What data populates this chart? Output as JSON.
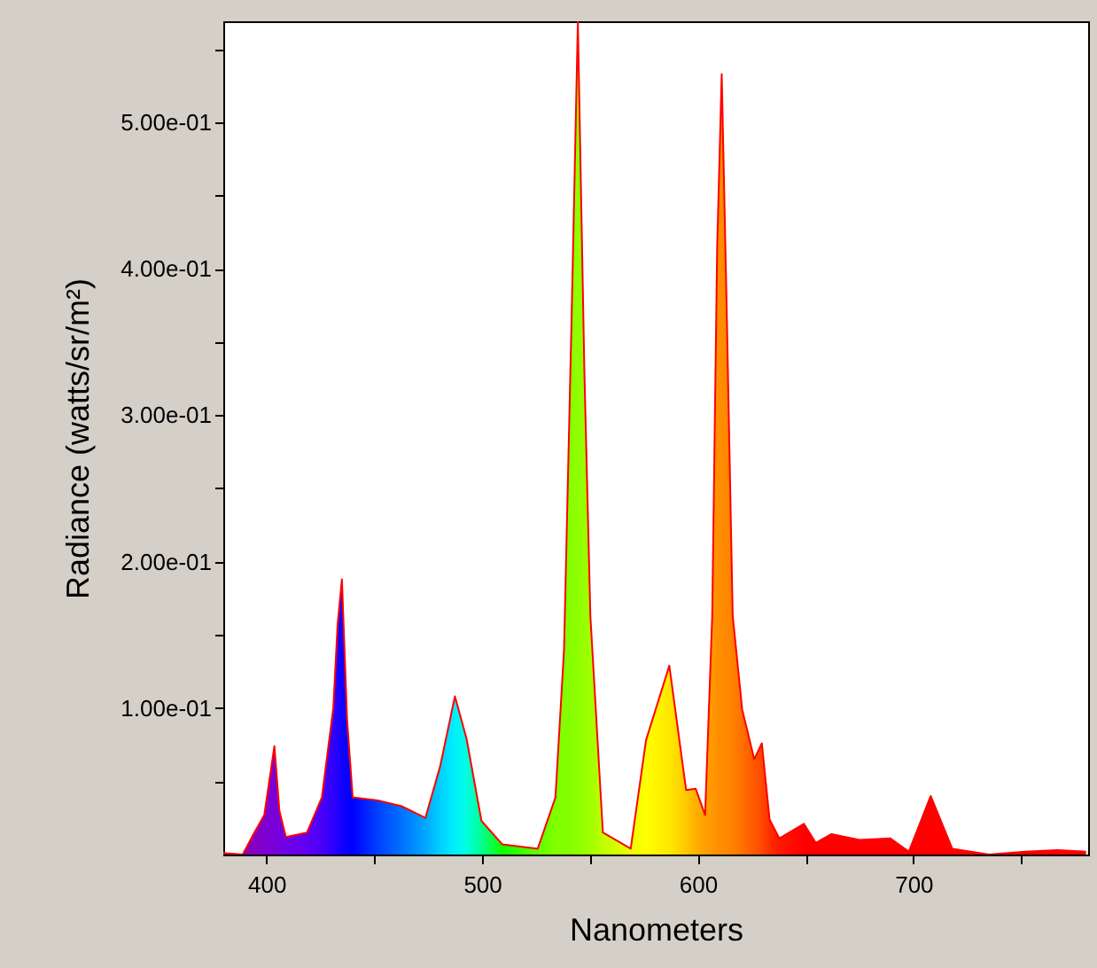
{
  "chart_data": {
    "type": "area",
    "xlabel": "Nanometers",
    "ylabel": "Radiance (watts/sr/m²)",
    "x": [
      380,
      389,
      394,
      399,
      403.7,
      406,
      409,
      418.8,
      425.7,
      431,
      433,
      435,
      437.4,
      440,
      451.7,
      462.7,
      473.7,
      480.5,
      487.4,
      492.8,
      499.7,
      509.3,
      525.8,
      534,
      538,
      541.6,
      544.4,
      547.4,
      550.2,
      556,
      568.9,
      576,
      586.8,
      594.6,
      599,
      603.4,
      606.7,
      609,
      611.1,
      613.4,
      616.2,
      620.6,
      626.2,
      629.7,
      633.3,
      637.8,
      649.2,
      654.7,
      662,
      675,
      689.3,
      697.9,
      708,
      718,
      735,
      752,
      766.7,
      780
    ],
    "series": [
      {
        "color": "#ff0000",
        "values": [
          0.001,
          0.0,
          0.014,
          0.027,
          0.074,
          0.03,
          0.012,
          0.015,
          0.039,
          0.1,
          0.157,
          0.188,
          0.092,
          0.039,
          0.037,
          0.033,
          0.025,
          0.06,
          0.108,
          0.079,
          0.023,
          0.007,
          0.004,
          0.039,
          0.14,
          0.373,
          0.569,
          0.331,
          0.163,
          0.015,
          0.004,
          0.078,
          0.129,
          0.044,
          0.045,
          0.027,
          0.163,
          0.415,
          0.533,
          0.373,
          0.163,
          0.099,
          0.065,
          0.076,
          0.024,
          0.011,
          0.021,
          0.008,
          0.014,
          0.01,
          0.011,
          0.002,
          0.04,
          0.004,
          0.0,
          0.002,
          0.003,
          0.002
        ],
        "colors": [
          "#800080",
          "#8a00b0",
          "#8800c0",
          "#8000d0",
          "#7a00d8",
          "#7400e0",
          "#7000e8",
          "#6000f0",
          "#4a00f8",
          "#3000ff",
          "#2000ff",
          "#1000ff",
          "#0800ff",
          "#0000ff",
          "#0040ff",
          "#0070ff",
          "#00a8ff",
          "#00d0ff",
          "#00f0ff",
          "#00ffe0",
          "#00ff90",
          "#10ff00",
          "#60ff00",
          "#80ff00",
          "#80ff00",
          "#88ff00",
          "#90ff00",
          "#98ff00",
          "#a0ff00",
          "#c0ff00",
          "#e8ff00",
          "#ffff00",
          "#ffe800",
          "#ffc800",
          "#ffb000",
          "#ffa000",
          "#ff9800",
          "#ff9000",
          "#ff8c00",
          "#ff8800",
          "#ff8000",
          "#ff7000",
          "#ff5800",
          "#ff4800",
          "#ff3000",
          "#ff1800",
          "#ff0000",
          "#ff0000",
          "#ff0000",
          "#ff0000",
          "#ff0000",
          "#ff0000",
          "#ff0000",
          "#ff0000",
          "#ff0000",
          "#ff0000",
          "#ff0000",
          "#ff0000"
        ]
      }
    ],
    "xlim": [
      380,
      781
    ],
    "xticks": [
      400,
      {
        "value": 450,
        "label": null
      },
      500,
      {
        "value": 550,
        "label": null
      },
      600,
      {
        "value": 650,
        "label": null
      },
      700,
      {
        "value": 750,
        "label": null
      }
    ],
    "ylim": [
      0,
      0.569
    ],
    "yticks": [
      {
        "value": 0.05,
        "label": null
      },
      {
        "value": 0.1,
        "label": "1.00e-01"
      },
      {
        "value": 0.15,
        "label": null
      },
      {
        "value": 0.2,
        "label": "2.00e-01"
      },
      {
        "value": 0.25,
        "label": null
      },
      {
        "value": 0.3,
        "label": "3.00e-01"
      },
      {
        "value": 0.35,
        "label": null
      },
      {
        "value": 0.4,
        "label": "4.00e-01"
      },
      {
        "value": 0.45,
        "label": null
      },
      {
        "value": 0.5,
        "label": "5.00e-01"
      },
      {
        "value": 0.55,
        "label": null
      }
    ]
  }
}
